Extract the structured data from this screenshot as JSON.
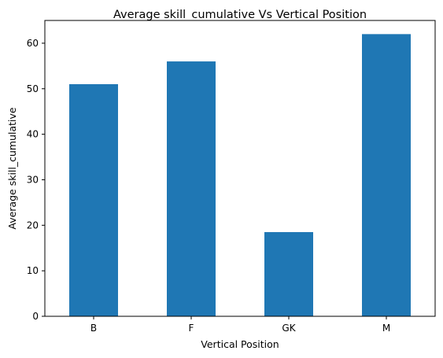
{
  "chart_data": {
    "type": "bar",
    "title": "Average skill_cumulative Vs Vertical Position",
    "xlabel": "Vertical Position",
    "ylabel": "Average skill_cumulative",
    "categories": [
      "B",
      "F",
      "GK",
      "M"
    ],
    "values": [
      51,
      56,
      18.5,
      62
    ],
    "ylim": [
      0,
      65
    ],
    "yticks": [
      0,
      10,
      20,
      30,
      40,
      50,
      60
    ],
    "ytick_labels": [
      "0",
      "10",
      "20",
      "30",
      "40",
      "50",
      "60"
    ],
    "bar_color": "#1f77b4",
    "grid": false,
    "legend": "none"
  }
}
